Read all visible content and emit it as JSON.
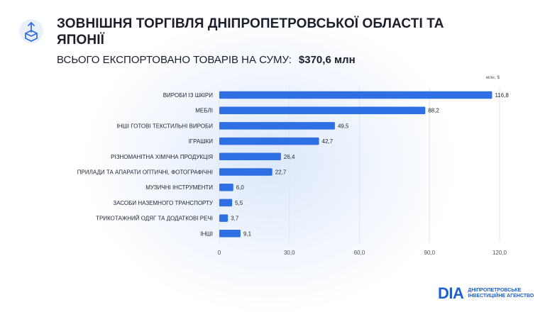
{
  "header": {
    "title": "ЗОВНІШНЯ ТОРГІВЛЯ ДНІПРОПЕТРОВСЬКОЇ ОБЛАСТІ ТА ЯПОНІЇ",
    "subtitle_label": "ВСЬОГО ЕКСПОРТОВАНО ТОВАРІВ НА СУМУ:",
    "subtitle_total": "$370,6 млн",
    "icon": "export-box-icon"
  },
  "chart_data": {
    "type": "bar",
    "orientation": "horizontal",
    "unit_label": "млн, $",
    "categories": [
      "ВИРОБИ ІЗ ШКІРИ",
      "МЕБЛІ",
      "ІНШІ ГОТОВІ ТЕКСТИЛЬНІ ВИРОБИ",
      "ІГРАШКИ",
      "РІЗНОМАНІТНА ХІМІЧНА ПРОДУКЦІЯ",
      "ПРИЛАДИ ТА АПАРАТИ ОПТИЧНІ, ФОТОГРАФІЧНІ",
      "МУЗИЧНІ ІНСТРУМЕНТИ",
      "ЗАСОБИ НАЗЕМНОГО ТРАНСПОРТУ",
      "ТРИКОТАЖНИЙ ОДЯГ ТА ДОДАТКОВІ РЕЧІ",
      "ІНШІ"
    ],
    "values": [
      116.8,
      88.2,
      49.5,
      42.7,
      26.4,
      22.7,
      6.0,
      5.5,
      3.7,
      9.1
    ],
    "value_labels": [
      "116,8",
      "88,2",
      "49,5",
      "42,7",
      "26,4",
      "22,7",
      "6,0",
      "5,5",
      "3,7",
      "9,1"
    ],
    "xlim": [
      0,
      120
    ],
    "xticks": [
      0,
      30,
      60,
      90,
      120
    ],
    "xtick_labels": [
      "0",
      "30,0",
      "60,0",
      "90,0",
      "120,0"
    ],
    "grid": "vertical",
    "bar_color": "#2f6fe4"
  },
  "footer": {
    "logo_mark": "DIA",
    "logo_line1": "ДНІПРОПЕТРОВСЬКЕ",
    "logo_line2": "ІНВЕСТИЦІЙНЕ АГЕНСТВО"
  }
}
